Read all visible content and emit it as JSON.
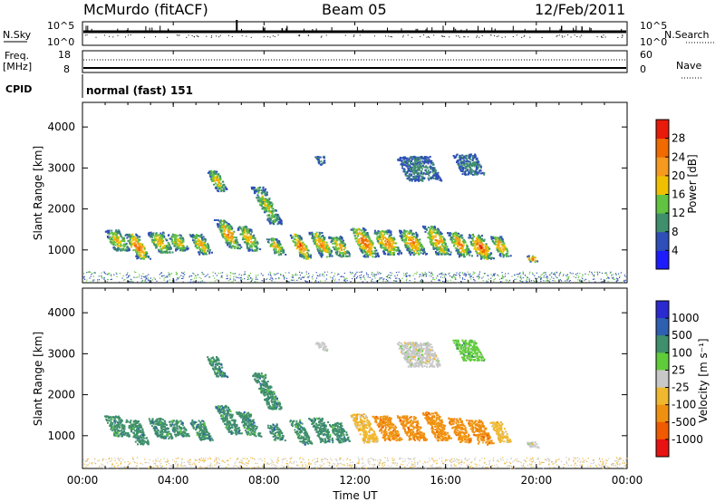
{
  "header": {
    "station": "McMurdo (fitACF)",
    "beam": "Beam 05",
    "date": "12/Feb/2011"
  },
  "top_panels": {
    "nsky": {
      "label": "N.Sky",
      "right_label": "N.Search",
      "left_ticks": [
        "10^5",
        "10^0"
      ],
      "right_ticks": [
        "10^5",
        "10^0"
      ]
    },
    "freq": {
      "label_line1": "Freq.",
      "label_line2": "[MHz]",
      "right_label": "Nave",
      "left_ticks": [
        "18",
        "8"
      ],
      "right_ticks": [
        "60",
        "0"
      ]
    },
    "cpid": {
      "label": "CPID",
      "value": "normal (fast) 151"
    }
  },
  "time_axis": {
    "ticks": [
      "00:00",
      "04:00",
      "08:00",
      "12:00",
      "16:00",
      "20:00",
      "00:00"
    ],
    "label": "Time UT"
  },
  "chart_data": [
    {
      "type": "heatmap",
      "name": "power",
      "ylabel": "Slant Range [km]",
      "yticks": [
        "1000",
        "2000",
        "3000",
        "4000"
      ],
      "ylim": [
        200,
        4600
      ],
      "xlim_hours": [
        0,
        24
      ],
      "colorbar_label": "Power [dB]",
      "colorbar_ticks": [
        "4",
        "8",
        "12",
        "16",
        "20",
        "24",
        "28"
      ],
      "colorbar_colors": [
        "#1c1cff",
        "#2e4fb8",
        "#3f8f6c",
        "#62c241",
        "#f0c000",
        "#f59a1e",
        "#f06a00",
        "#e81a0a"
      ],
      "range_limits": [
        0,
        32
      ]
    },
    {
      "type": "heatmap",
      "name": "velocity",
      "ylabel": "Slant Range [km]",
      "yticks": [
        "1000",
        "2000",
        "3000",
        "4000"
      ],
      "ylim": [
        200,
        4600
      ],
      "xlim_hours": [
        0,
        24
      ],
      "colorbar_label": "Velocity [m s⁻¹]",
      "colorbar_ticks": [
        "1000",
        "500",
        "100",
        "25",
        "-25",
        "-100",
        "-500",
        "-1000"
      ],
      "colorbar_colors": [
        "#2a2ad0",
        "#2f5fb0",
        "#3f8f6c",
        "#5fcc3a",
        "#c8c8c8",
        "#f0b830",
        "#f09010",
        "#f05a00",
        "#e81212"
      ]
    }
  ]
}
